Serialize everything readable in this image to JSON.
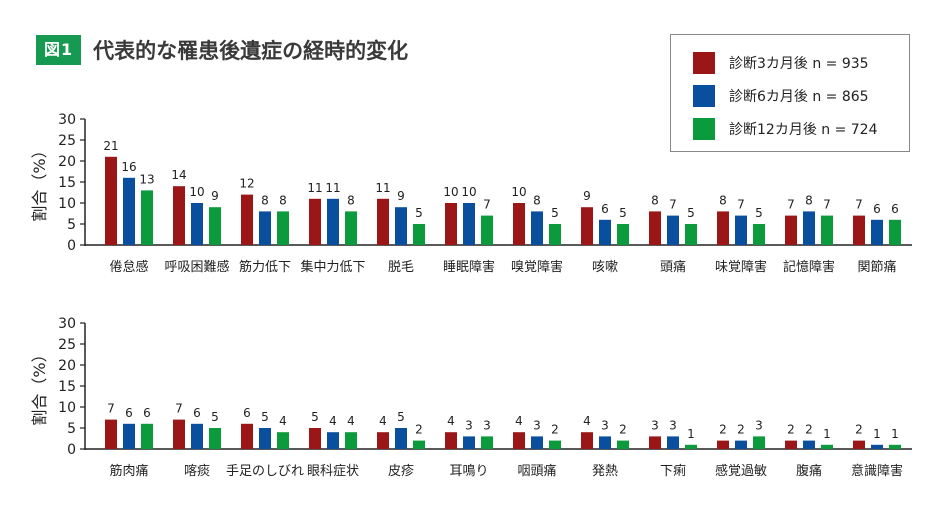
{
  "figure": {
    "badge": "図1",
    "title": "代表的な罹患後遺症の経時的変化"
  },
  "colors": {
    "s3": "#9b1717",
    "s6": "#0a4f9e",
    "s12": "#0b9a3c",
    "axis": "#222222"
  },
  "legend": [
    {
      "label": "診断3カ月後 n = 935",
      "color": "#9b1717"
    },
    {
      "label": "診断6カ月後 n = 865",
      "color": "#0a4f9e"
    },
    {
      "label": "診断12カ月後 n = 724",
      "color": "#0b9a3c"
    }
  ],
  "chart_data": [
    {
      "type": "bar",
      "ylabel": "割合（%）",
      "ylim": [
        0,
        30
      ],
      "yticks": [
        0,
        5,
        10,
        15,
        20,
        25,
        30
      ],
      "categories": [
        "倦怠感",
        "呼吸困難感",
        "筋力低下",
        "集中力低下",
        "脱毛",
        "睡眠障害",
        "嗅覚障害",
        "咳嗽",
        "頭痛",
        "味覚障害",
        "記憶障害",
        "関節痛"
      ],
      "series": [
        {
          "name": "診断3カ月後 n = 935",
          "values": [
            21,
            14,
            12,
            11,
            11,
            10,
            10,
            9,
            8,
            8,
            7,
            7
          ]
        },
        {
          "name": "診断6カ月後 n = 865",
          "values": [
            16,
            10,
            8,
            11,
            9,
            10,
            8,
            6,
            7,
            7,
            8,
            6
          ]
        },
        {
          "name": "診断12カ月後 n = 724",
          "values": [
            13,
            9,
            8,
            8,
            5,
            7,
            5,
            5,
            5,
            5,
            7,
            6
          ]
        }
      ]
    },
    {
      "type": "bar",
      "ylabel": "割合（%）",
      "ylim": [
        0,
        30
      ],
      "yticks": [
        0,
        5,
        10,
        15,
        20,
        25,
        30
      ],
      "categories": [
        "筋肉痛",
        "喀痰",
        "手足のしびれ",
        "眼科症状",
        "皮疹",
        "耳鳴り",
        "咽頭痛",
        "発熱",
        "下痢",
        "感覚過敏",
        "腹痛",
        "意識障害"
      ],
      "series": [
        {
          "name": "診断3カ月後 n = 935",
          "values": [
            7,
            7,
            6,
            5,
            4,
            4,
            4,
            4,
            3,
            2,
            2,
            2
          ]
        },
        {
          "name": "診断6カ月後 n = 865",
          "values": [
            6,
            6,
            5,
            4,
            5,
            3,
            3,
            3,
            3,
            2,
            2,
            1
          ]
        },
        {
          "name": "診断12カ月後 n = 724",
          "values": [
            6,
            5,
            4,
            4,
            2,
            3,
            2,
            2,
            1,
            3,
            1,
            1
          ]
        }
      ]
    }
  ]
}
